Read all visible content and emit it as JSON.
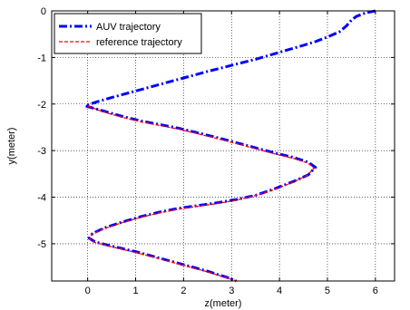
{
  "chart_data": {
    "type": "line",
    "title": "",
    "xlabel": "z(meter)",
    "ylabel": "y(meter)",
    "xlim": [
      -0.75,
      6.4
    ],
    "ylim": [
      -5.8,
      0
    ],
    "xticks": [
      0,
      1,
      2,
      3,
      4,
      5,
      6
    ],
    "yticks": [
      0,
      -1,
      -2,
      -3,
      -4,
      -5
    ],
    "xtick_labels": [
      "0",
      "1",
      "2",
      "3",
      "4",
      "5",
      "6"
    ],
    "ytick_labels": [
      "0",
      "-1",
      "-2",
      "-3",
      "-4",
      "-5"
    ],
    "grid": true,
    "legend_position": "top-left",
    "series": [
      {
        "name": "AUV trajectory",
        "color": "#0000ff",
        "style": "dash-dot",
        "points": [
          [
            6.0,
            0.0
          ],
          [
            5.8,
            -0.04
          ],
          [
            5.6,
            -0.12
          ],
          [
            5.5,
            -0.2
          ],
          [
            5.4,
            -0.32
          ],
          [
            5.25,
            -0.45
          ],
          [
            5.0,
            -0.56
          ],
          [
            4.75,
            -0.66
          ],
          [
            4.5,
            -0.74
          ],
          [
            4.2,
            -0.83
          ],
          [
            3.9,
            -0.92
          ],
          [
            3.5,
            -1.04
          ],
          [
            3.0,
            -1.17
          ],
          [
            2.5,
            -1.3
          ],
          [
            2.0,
            -1.44
          ],
          [
            1.5,
            -1.58
          ],
          [
            1.0,
            -1.72
          ],
          [
            0.5,
            -1.86
          ],
          [
            0.2,
            -1.95
          ],
          [
            0.0,
            -2.02
          ],
          [
            -0.05,
            -2.04
          ],
          [
            0.3,
            -2.14
          ],
          [
            0.7,
            -2.26
          ],
          [
            1.1,
            -2.36
          ],
          [
            1.5,
            -2.44
          ],
          [
            1.9,
            -2.52
          ],
          [
            2.3,
            -2.62
          ],
          [
            2.7,
            -2.72
          ],
          [
            3.1,
            -2.83
          ],
          [
            3.5,
            -2.94
          ],
          [
            3.9,
            -3.05
          ],
          [
            4.3,
            -3.15
          ],
          [
            4.6,
            -3.25
          ],
          [
            4.75,
            -3.36
          ],
          [
            4.6,
            -3.52
          ],
          [
            4.3,
            -3.66
          ],
          [
            3.9,
            -3.82
          ],
          [
            3.5,
            -3.96
          ],
          [
            3.1,
            -4.05
          ],
          [
            2.7,
            -4.12
          ],
          [
            2.3,
            -4.18
          ],
          [
            1.9,
            -4.24
          ],
          [
            1.5,
            -4.32
          ],
          [
            1.1,
            -4.42
          ],
          [
            0.7,
            -4.54
          ],
          [
            0.35,
            -4.66
          ],
          [
            0.1,
            -4.78
          ],
          [
            0.03,
            -4.88
          ],
          [
            0.15,
            -4.96
          ],
          [
            0.5,
            -5.05
          ],
          [
            1.0,
            -5.17
          ],
          [
            1.5,
            -5.31
          ],
          [
            2.0,
            -5.45
          ],
          [
            2.5,
            -5.59
          ],
          [
            2.9,
            -5.72
          ],
          [
            3.1,
            -5.8
          ]
        ]
      },
      {
        "name": "reference trajectory",
        "color": "#ff0000",
        "style": "dashed",
        "points": [
          [
            0.0,
            -2.04
          ],
          [
            0.3,
            -2.16
          ],
          [
            0.7,
            -2.28
          ],
          [
            1.1,
            -2.38
          ],
          [
            1.5,
            -2.46
          ],
          [
            1.9,
            -2.54
          ],
          [
            2.3,
            -2.64
          ],
          [
            2.7,
            -2.74
          ],
          [
            3.1,
            -2.85
          ],
          [
            3.5,
            -2.96
          ],
          [
            3.9,
            -3.07
          ],
          [
            4.3,
            -3.17
          ],
          [
            4.6,
            -3.27
          ],
          [
            4.72,
            -3.38
          ],
          [
            4.58,
            -3.53
          ],
          [
            4.28,
            -3.68
          ],
          [
            3.88,
            -3.84
          ],
          [
            3.48,
            -3.97
          ],
          [
            3.08,
            -4.07
          ],
          [
            2.68,
            -4.14
          ],
          [
            2.28,
            -4.2
          ],
          [
            1.88,
            -4.26
          ],
          [
            1.48,
            -4.34
          ],
          [
            1.08,
            -4.44
          ],
          [
            0.68,
            -4.56
          ],
          [
            0.33,
            -4.68
          ],
          [
            0.09,
            -4.8
          ],
          [
            0.04,
            -4.9
          ],
          [
            0.17,
            -4.98
          ],
          [
            0.52,
            -5.07
          ],
          [
            1.02,
            -5.19
          ],
          [
            1.52,
            -5.33
          ],
          [
            2.02,
            -5.47
          ],
          [
            2.52,
            -5.61
          ],
          [
            2.92,
            -5.74
          ],
          [
            3.12,
            -5.8
          ]
        ]
      }
    ]
  }
}
